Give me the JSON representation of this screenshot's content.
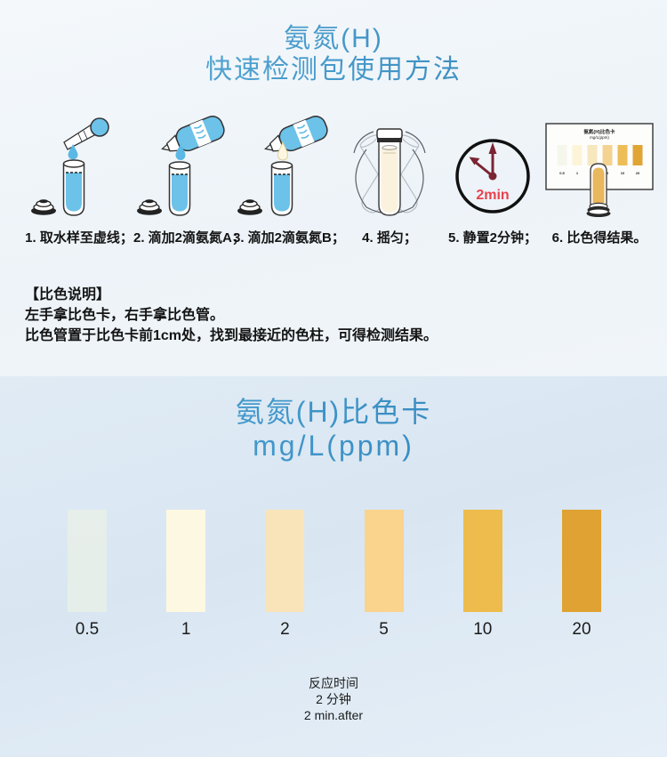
{
  "header": {
    "title_line1": "氨氮(H)",
    "title_line2": "快速检测包使用方法"
  },
  "steps": [
    {
      "caption": "1. 取水样至虚线；",
      "icon": "pipette-drop-into-tube"
    },
    {
      "caption": "2. 滴加2滴氨氮A；",
      "icon": "reagent-bottle-a-drop-into-tube"
    },
    {
      "caption": "3. 滴加2滴氨氮B；",
      "icon": "reagent-bottle-b-drop-into-tube"
    },
    {
      "caption": "4. 摇匀；",
      "icon": "shake-capped-tube"
    },
    {
      "caption": "5. 静置2分钟；",
      "icon": "timer-clock"
    },
    {
      "caption": "6. 比色得结果。",
      "icon": "compare-tube-with-color-card"
    }
  ],
  "clock": {
    "label": "2min"
  },
  "mini_card": {
    "title_line1": "氨氮(H)比色卡",
    "title_line2": "mg/L(ppm)",
    "labels": [
      "0.5",
      "1",
      "2",
      "5",
      "10",
      "20"
    ],
    "swatch_colors": [
      "#f6f7ec",
      "#fdf4d8",
      "#f7e7bd",
      "#f4d291",
      "#edbd57",
      "#e0a534"
    ]
  },
  "notes": {
    "heading": "【比色说明】",
    "line1": "左手拿比色卡，右手拿比色管。",
    "line2": "比色管置于比色卡前1cm处，找到最接近的色柱，可得检测结果。"
  },
  "color_card": {
    "title_line1": "氨氮(H)比色卡",
    "title_line2": "mg/L(ppm)",
    "swatches": [
      {
        "label": "0.5",
        "color": "rgba(241,244,228,0.55)"
      },
      {
        "label": "1",
        "color": "#fdf8e2"
      },
      {
        "label": "2",
        "color": "#f9e4ba"
      },
      {
        "label": "5",
        "color": "#fad38d"
      },
      {
        "label": "10",
        "color": "#edbc4d"
      },
      {
        "label": "20",
        "color": "#dfa233"
      }
    ],
    "footer_line1": "反应时间",
    "footer_line2": "2 分钟",
    "footer_line3": "2 min.after"
  },
  "palette": {
    "title_blue_from": "#5fb3de",
    "title_blue_to": "#2e7fb6",
    "liquid_blue": "#6cc2e8",
    "clock_hand": "#7b2433",
    "clock_label_red": "#e8424d",
    "cream_liquid": "#faf2dd",
    "amber_liquid": "#e9b75d"
  }
}
